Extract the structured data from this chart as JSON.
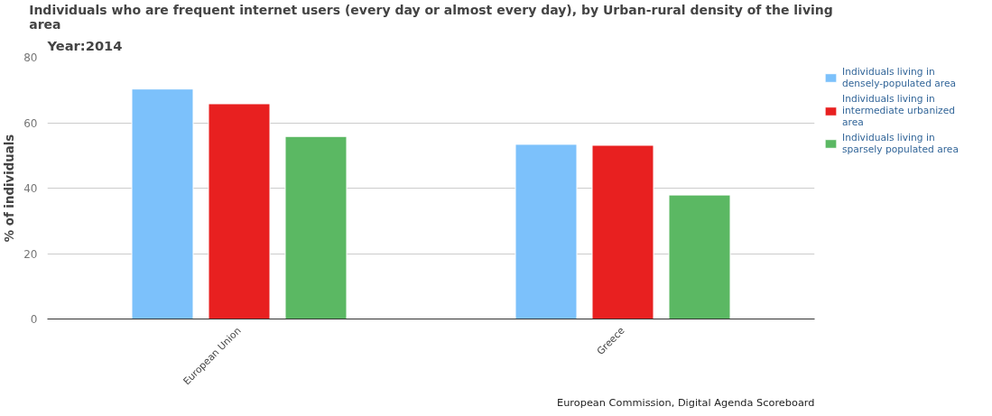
{
  "chart_data": {
    "type": "bar",
    "title": "Individuals who are frequent internet users (every day or almost every day), by Urban-rural density of the living area",
    "subtitle": "Year:2014",
    "ylabel": "% of individuals",
    "categories": [
      "European Union",
      "Greece"
    ],
    "series": [
      {
        "name": "Individuals living in densely-populated area",
        "color": "#7cc1fb",
        "values": [
          70.3,
          53.4
        ]
      },
      {
        "name": "Individuals living in intermediate urbanized area",
        "color": "#e82020",
        "values": [
          65.8,
          53.1
        ]
      },
      {
        "name": "Individuals living in sparsely populated area",
        "color": "#5bb863",
        "values": [
          55.8,
          37.9
        ]
      }
    ],
    "ylim": [
      0,
      80
    ],
    "yticks": [
      0,
      20,
      40,
      60,
      80
    ],
    "grid": "y",
    "legend": "right",
    "annotations": [
      "European Commission, Digital Agenda Scoreboard"
    ]
  }
}
